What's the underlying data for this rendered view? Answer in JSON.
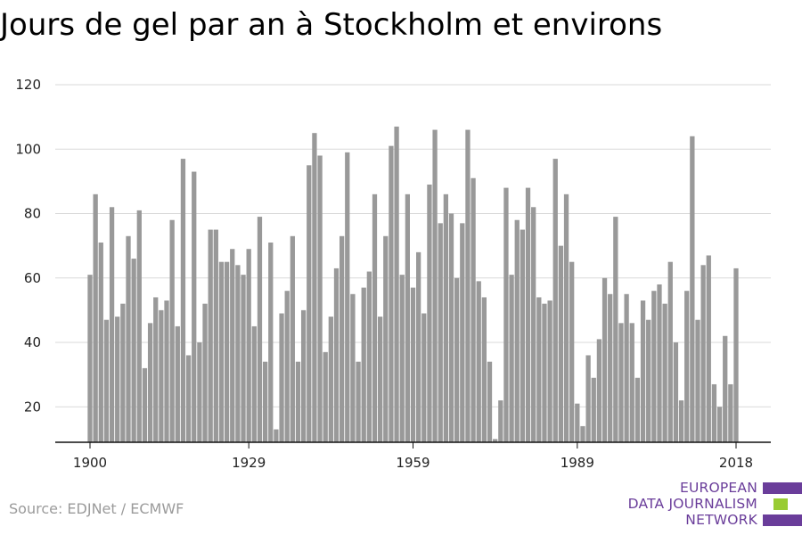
{
  "chart_data": {
    "type": "bar",
    "title": "Jours de gel par an à Stockholm et environs",
    "xlabel": "",
    "ylabel": "",
    "x_ticks": [
      1900,
      1929,
      1959,
      1989,
      2018
    ],
    "y_ticks": [
      20,
      40,
      60,
      80,
      100,
      120
    ],
    "xlim": [
      1900,
      2018
    ],
    "ylim": [
      9,
      120
    ],
    "grid": true,
    "bar_color": "#999999",
    "categories": [
      1900,
      1901,
      1902,
      1903,
      1904,
      1905,
      1906,
      1907,
      1908,
      1909,
      1910,
      1911,
      1912,
      1913,
      1914,
      1915,
      1916,
      1917,
      1918,
      1919,
      1920,
      1921,
      1922,
      1923,
      1924,
      1925,
      1926,
      1927,
      1928,
      1929,
      1930,
      1931,
      1932,
      1933,
      1934,
      1935,
      1936,
      1937,
      1938,
      1939,
      1940,
      1941,
      1942,
      1943,
      1944,
      1945,
      1946,
      1947,
      1948,
      1949,
      1950,
      1951,
      1952,
      1953,
      1954,
      1955,
      1956,
      1957,
      1958,
      1959,
      1960,
      1961,
      1962,
      1963,
      1964,
      1965,
      1966,
      1967,
      1968,
      1969,
      1970,
      1971,
      1972,
      1973,
      1974,
      1975,
      1976,
      1977,
      1978,
      1979,
      1980,
      1981,
      1982,
      1983,
      1984,
      1985,
      1986,
      1987,
      1988,
      1989,
      1990,
      1991,
      1992,
      1993,
      1994,
      1995,
      1996,
      1997,
      1998,
      1999,
      2000,
      2001,
      2002,
      2003,
      2004,
      2005,
      2006,
      2007,
      2008,
      2009,
      2010,
      2011,
      2012,
      2013,
      2014,
      2015,
      2016,
      2017,
      2018
    ],
    "values": [
      61,
      86,
      71,
      47,
      82,
      48,
      52,
      73,
      66,
      81,
      32,
      46,
      54,
      50,
      53,
      78,
      45,
      97,
      36,
      93,
      40,
      52,
      75,
      75,
      65,
      65,
      69,
      64,
      61,
      69,
      45,
      79,
      34,
      71,
      13,
      49,
      56,
      73,
      34,
      50,
      95,
      105,
      98,
      37,
      48,
      63,
      73,
      99,
      55,
      34,
      57,
      62,
      86,
      48,
      73,
      101,
      107,
      61,
      86,
      57,
      68,
      49,
      89,
      106,
      77,
      86,
      80,
      60,
      77,
      106,
      91,
      59,
      54,
      34,
      10,
      22,
      88,
      61,
      78,
      75,
      88,
      82,
      54,
      52,
      53,
      97,
      70,
      86,
      65,
      21,
      14,
      36,
      29,
      41,
      60,
      55,
      79,
      46,
      55,
      46,
      29,
      53,
      47,
      56,
      58,
      52,
      65,
      40,
      22,
      56,
      104,
      47,
      64,
      67,
      27,
      20,
      42,
      27,
      63
    ]
  },
  "source": "Source: EDJNet / ECMWF",
  "logo": {
    "lines": [
      "EUROPEAN",
      "DATA JOURNALISM",
      "NETWORK"
    ],
    "text_color": "#6a3d9a",
    "bar_colors": [
      "#6a3d9a",
      "#99cc33",
      "#6a3d9a"
    ]
  }
}
